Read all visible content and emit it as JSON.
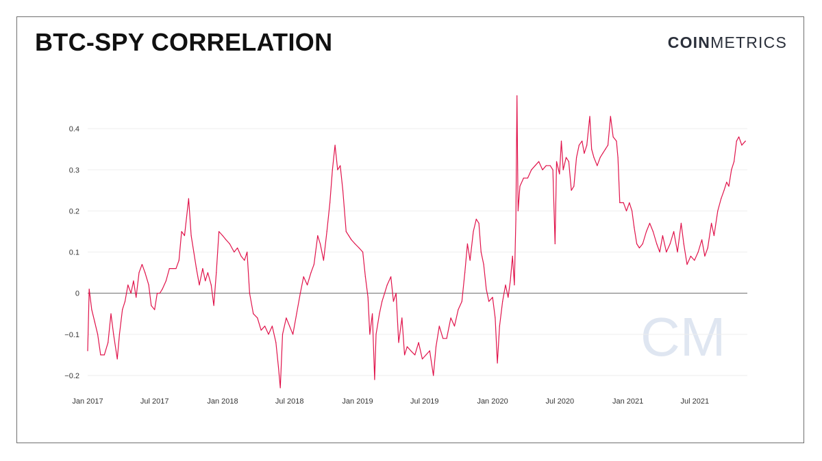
{
  "header": {
    "title": "BTC-SPY CORRELATION",
    "logo_bold": "COIN",
    "logo_light": "METRICS",
    "watermark": "CM"
  },
  "chart_data": {
    "type": "line",
    "title": "BTC-SPY CORRELATION",
    "xlabel": "",
    "ylabel": "",
    "x_range": [
      "2017-01-01",
      "2021-11-20"
    ],
    "ylim": [
      -0.23,
      0.48
    ],
    "grid": true,
    "zero_line": true,
    "x_ticks": [
      {
        "date": "2017-01-01",
        "label": "Jan 2017"
      },
      {
        "date": "2017-07-01",
        "label": "Jul 2017"
      },
      {
        "date": "2018-01-01",
        "label": "Jan 2018"
      },
      {
        "date": "2018-07-01",
        "label": "Jul 2018"
      },
      {
        "date": "2019-01-01",
        "label": "Jan 2019"
      },
      {
        "date": "2019-07-01",
        "label": "Jul 2019"
      },
      {
        "date": "2020-01-01",
        "label": "Jan 2020"
      },
      {
        "date": "2020-07-01",
        "label": "Jul 2020"
      },
      {
        "date": "2021-01-01",
        "label": "Jan 2021"
      },
      {
        "date": "2021-07-01",
        "label": "Jul 2021"
      }
    ],
    "y_ticks": [
      {
        "value": 0.4,
        "label": "0.4"
      },
      {
        "value": 0.3,
        "label": "0.3"
      },
      {
        "value": 0.2,
        "label": "0.2"
      },
      {
        "value": 0.1,
        "label": "0.1"
      },
      {
        "value": 0,
        "label": "0"
      },
      {
        "value": -0.1,
        "label": "−0.1"
      },
      {
        "value": -0.2,
        "label": "−0.2"
      }
    ],
    "colors": {
      "line": "#e0124a",
      "grid": "#eeeeee",
      "zero": "#777777"
    },
    "series": [
      {
        "values": [
          [
            "2017-01-01",
            -0.14
          ],
          [
            "2017-01-05",
            0.01
          ],
          [
            "2017-01-12",
            -0.04
          ],
          [
            "2017-01-20",
            -0.07
          ],
          [
            "2017-01-28",
            -0.1
          ],
          [
            "2017-02-05",
            -0.15
          ],
          [
            "2017-02-15",
            -0.15
          ],
          [
            "2017-02-25",
            -0.12
          ],
          [
            "2017-03-05",
            -0.05
          ],
          [
            "2017-03-12",
            -0.1
          ],
          [
            "2017-03-22",
            -0.16
          ],
          [
            "2017-03-28",
            -0.1
          ],
          [
            "2017-04-05",
            -0.04
          ],
          [
            "2017-04-12",
            -0.02
          ],
          [
            "2017-04-20",
            0.02
          ],
          [
            "2017-04-28",
            0.0
          ],
          [
            "2017-05-05",
            0.03
          ],
          [
            "2017-05-12",
            -0.01
          ],
          [
            "2017-05-20",
            0.05
          ],
          [
            "2017-05-28",
            0.07
          ],
          [
            "2017-06-05",
            0.05
          ],
          [
            "2017-06-15",
            0.02
          ],
          [
            "2017-06-22",
            -0.03
          ],
          [
            "2017-07-01",
            -0.04
          ],
          [
            "2017-07-08",
            0.0
          ],
          [
            "2017-07-15",
            0.0
          ],
          [
            "2017-07-22",
            0.01
          ],
          [
            "2017-08-01",
            0.03
          ],
          [
            "2017-08-10",
            0.06
          ],
          [
            "2017-08-20",
            0.06
          ],
          [
            "2017-08-28",
            0.06
          ],
          [
            "2017-09-05",
            0.08
          ],
          [
            "2017-09-12",
            0.15
          ],
          [
            "2017-09-20",
            0.14
          ],
          [
            "2017-10-01",
            0.23
          ],
          [
            "2017-10-08",
            0.14
          ],
          [
            "2017-10-15",
            0.1
          ],
          [
            "2017-10-22",
            0.06
          ],
          [
            "2017-10-30",
            0.02
          ],
          [
            "2017-11-08",
            0.06
          ],
          [
            "2017-11-15",
            0.03
          ],
          [
            "2017-11-22",
            0.05
          ],
          [
            "2017-12-01",
            0.02
          ],
          [
            "2017-12-08",
            -0.03
          ],
          [
            "2017-12-15",
            0.05
          ],
          [
            "2017-12-22",
            0.15
          ],
          [
            "2018-01-01",
            0.14
          ],
          [
            "2018-01-10",
            0.13
          ],
          [
            "2018-01-20",
            0.12
          ],
          [
            "2018-02-01",
            0.1
          ],
          [
            "2018-02-10",
            0.11
          ],
          [
            "2018-02-20",
            0.09
          ],
          [
            "2018-03-01",
            0.08
          ],
          [
            "2018-03-08",
            0.1
          ],
          [
            "2018-03-15",
            0.0
          ],
          [
            "2018-03-25",
            -0.05
          ],
          [
            "2018-04-05",
            -0.06
          ],
          [
            "2018-04-15",
            -0.09
          ],
          [
            "2018-04-25",
            -0.08
          ],
          [
            "2018-05-05",
            -0.1
          ],
          [
            "2018-05-15",
            -0.08
          ],
          [
            "2018-05-25",
            -0.12
          ],
          [
            "2018-06-01",
            -0.18
          ],
          [
            "2018-06-06",
            -0.23
          ],
          [
            "2018-06-12",
            -0.1
          ],
          [
            "2018-06-22",
            -0.06
          ],
          [
            "2018-07-01",
            -0.08
          ],
          [
            "2018-07-10",
            -0.1
          ],
          [
            "2018-07-20",
            -0.05
          ],
          [
            "2018-07-30",
            0.0
          ],
          [
            "2018-08-08",
            0.04
          ],
          [
            "2018-08-18",
            0.02
          ],
          [
            "2018-08-28",
            0.05
          ],
          [
            "2018-09-05",
            0.07
          ],
          [
            "2018-09-15",
            0.14
          ],
          [
            "2018-09-22",
            0.12
          ],
          [
            "2018-10-01",
            0.08
          ],
          [
            "2018-10-10",
            0.15
          ],
          [
            "2018-10-18",
            0.22
          ],
          [
            "2018-10-25",
            0.3
          ],
          [
            "2018-11-01",
            0.36
          ],
          [
            "2018-11-08",
            0.3
          ],
          [
            "2018-11-15",
            0.31
          ],
          [
            "2018-11-22",
            0.25
          ],
          [
            "2018-12-01",
            0.15
          ],
          [
            "2018-12-08",
            0.14
          ],
          [
            "2018-12-15",
            0.13
          ],
          [
            "2018-12-25",
            0.12
          ],
          [
            "2019-01-05",
            0.11
          ],
          [
            "2019-01-15",
            0.1
          ],
          [
            "2019-01-22",
            0.04
          ],
          [
            "2019-01-29",
            -0.01
          ],
          [
            "2019-02-03",
            -0.1
          ],
          [
            "2019-02-10",
            -0.05
          ],
          [
            "2019-02-16",
            -0.21
          ],
          [
            "2019-02-20",
            -0.1
          ],
          [
            "2019-03-01",
            -0.05
          ],
          [
            "2019-03-08",
            -0.02
          ],
          [
            "2019-03-15",
            0.0
          ],
          [
            "2019-03-22",
            0.02
          ],
          [
            "2019-04-01",
            0.04
          ],
          [
            "2019-04-08",
            -0.02
          ],
          [
            "2019-04-15",
            0.0
          ],
          [
            "2019-04-22",
            -0.12
          ],
          [
            "2019-05-01",
            -0.06
          ],
          [
            "2019-05-08",
            -0.15
          ],
          [
            "2019-05-15",
            -0.13
          ],
          [
            "2019-05-25",
            -0.14
          ],
          [
            "2019-06-05",
            -0.15
          ],
          [
            "2019-06-15",
            -0.12
          ],
          [
            "2019-06-25",
            -0.16
          ],
          [
            "2019-07-05",
            -0.15
          ],
          [
            "2019-07-15",
            -0.14
          ],
          [
            "2019-07-25",
            -0.2
          ],
          [
            "2019-08-01",
            -0.13
          ],
          [
            "2019-08-10",
            -0.08
          ],
          [
            "2019-08-20",
            -0.11
          ],
          [
            "2019-08-30",
            -0.11
          ],
          [
            "2019-09-10",
            -0.06
          ],
          [
            "2019-09-20",
            -0.08
          ],
          [
            "2019-09-30",
            -0.04
          ],
          [
            "2019-10-10",
            -0.02
          ],
          [
            "2019-10-18",
            0.05
          ],
          [
            "2019-10-25",
            0.12
          ],
          [
            "2019-11-01",
            0.08
          ],
          [
            "2019-11-10",
            0.15
          ],
          [
            "2019-11-18",
            0.18
          ],
          [
            "2019-11-25",
            0.17
          ],
          [
            "2019-12-01",
            0.1
          ],
          [
            "2019-12-08",
            0.07
          ],
          [
            "2019-12-15",
            0.01
          ],
          [
            "2019-12-22",
            -0.02
          ],
          [
            "2020-01-01",
            -0.01
          ],
          [
            "2020-01-08",
            -0.06
          ],
          [
            "2020-01-14",
            -0.17
          ],
          [
            "2020-01-20",
            -0.08
          ],
          [
            "2020-01-28",
            -0.02
          ],
          [
            "2020-02-05",
            0.02
          ],
          [
            "2020-02-12",
            -0.01
          ],
          [
            "2020-02-18",
            0.03
          ],
          [
            "2020-02-24",
            0.09
          ],
          [
            "2020-02-29",
            0.02
          ],
          [
            "2020-03-04",
            0.18
          ],
          [
            "2020-03-07",
            0.48
          ],
          [
            "2020-03-10",
            0.2
          ],
          [
            "2020-03-15",
            0.26
          ],
          [
            "2020-03-25",
            0.28
          ],
          [
            "2020-04-05",
            0.28
          ],
          [
            "2020-04-15",
            0.3
          ],
          [
            "2020-04-25",
            0.31
          ],
          [
            "2020-05-05",
            0.32
          ],
          [
            "2020-05-15",
            0.3
          ],
          [
            "2020-05-25",
            0.31
          ],
          [
            "2020-06-05",
            0.31
          ],
          [
            "2020-06-12",
            0.3
          ],
          [
            "2020-06-18",
            0.12
          ],
          [
            "2020-06-22",
            0.32
          ],
          [
            "2020-06-30",
            0.29
          ],
          [
            "2020-07-05",
            0.37
          ],
          [
            "2020-07-10",
            0.3
          ],
          [
            "2020-07-18",
            0.33
          ],
          [
            "2020-07-25",
            0.32
          ],
          [
            "2020-08-01",
            0.25
          ],
          [
            "2020-08-08",
            0.26
          ],
          [
            "2020-08-15",
            0.33
          ],
          [
            "2020-08-22",
            0.36
          ],
          [
            "2020-08-30",
            0.37
          ],
          [
            "2020-09-05",
            0.34
          ],
          [
            "2020-09-12",
            0.36
          ],
          [
            "2020-09-20",
            0.43
          ],
          [
            "2020-09-25",
            0.35
          ],
          [
            "2020-10-01",
            0.33
          ],
          [
            "2020-10-10",
            0.31
          ],
          [
            "2020-10-18",
            0.33
          ],
          [
            "2020-10-25",
            0.34
          ],
          [
            "2020-11-01",
            0.35
          ],
          [
            "2020-11-08",
            0.36
          ],
          [
            "2020-11-15",
            0.43
          ],
          [
            "2020-11-22",
            0.38
          ],
          [
            "2020-12-01",
            0.37
          ],
          [
            "2020-12-05",
            0.33
          ],
          [
            "2020-12-10",
            0.22
          ],
          [
            "2020-12-20",
            0.22
          ],
          [
            "2020-12-28",
            0.2
          ],
          [
            "2021-01-05",
            0.22
          ],
          [
            "2021-01-12",
            0.2
          ],
          [
            "2021-01-18",
            0.16
          ],
          [
            "2021-01-25",
            0.12
          ],
          [
            "2021-02-01",
            0.11
          ],
          [
            "2021-02-10",
            0.12
          ],
          [
            "2021-02-20",
            0.15
          ],
          [
            "2021-03-01",
            0.17
          ],
          [
            "2021-03-10",
            0.15
          ],
          [
            "2021-03-20",
            0.12
          ],
          [
            "2021-03-28",
            0.1
          ],
          [
            "2021-04-05",
            0.14
          ],
          [
            "2021-04-15",
            0.1
          ],
          [
            "2021-04-25",
            0.12
          ],
          [
            "2021-05-05",
            0.15
          ],
          [
            "2021-05-15",
            0.1
          ],
          [
            "2021-05-25",
            0.17
          ],
          [
            "2021-06-01",
            0.12
          ],
          [
            "2021-06-10",
            0.07
          ],
          [
            "2021-06-20",
            0.09
          ],
          [
            "2021-06-30",
            0.08
          ],
          [
            "2021-07-10",
            0.1
          ],
          [
            "2021-07-20",
            0.13
          ],
          [
            "2021-07-28",
            0.09
          ],
          [
            "2021-08-05",
            0.11
          ],
          [
            "2021-08-15",
            0.17
          ],
          [
            "2021-08-22",
            0.14
          ],
          [
            "2021-09-01",
            0.2
          ],
          [
            "2021-09-10",
            0.23
          ],
          [
            "2021-09-18",
            0.25
          ],
          [
            "2021-09-25",
            0.27
          ],
          [
            "2021-10-01",
            0.26
          ],
          [
            "2021-10-08",
            0.3
          ],
          [
            "2021-10-15",
            0.32
          ],
          [
            "2021-10-22",
            0.37
          ],
          [
            "2021-10-28",
            0.38
          ],
          [
            "2021-11-05",
            0.36
          ],
          [
            "2021-11-15",
            0.37
          ]
        ]
      }
    ]
  }
}
